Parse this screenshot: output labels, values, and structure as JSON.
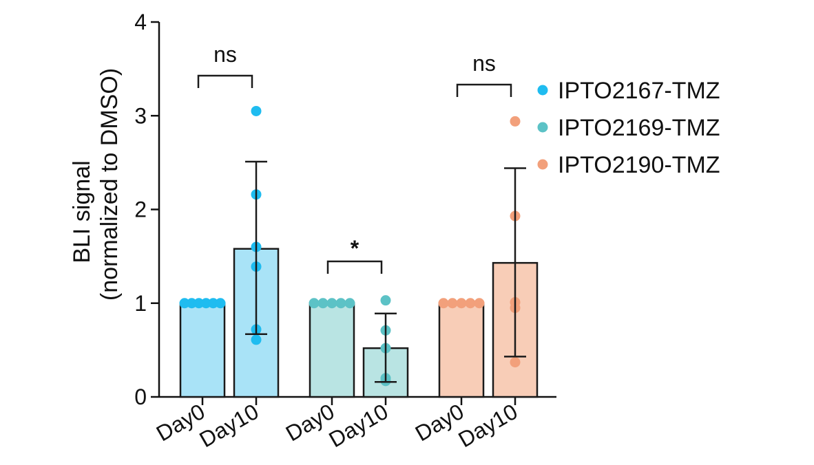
{
  "chart_data": {
    "type": "bar",
    "ylabel_line1": "BLI signal",
    "ylabel_line2": "(normalized to DMSO)",
    "ylim": [
      0,
      4
    ],
    "yticks": [
      "0",
      "1",
      "2",
      "3",
      "4"
    ],
    "groups": [
      {
        "name": "IPTO2167-TMZ",
        "color": "#1fbcf0",
        "fill": "#a9e3f7",
        "bars": [
          {
            "label": "Day0",
            "mean": 1.0,
            "points": [
              1.0,
              1.0,
              1.0,
              1.0,
              1.0,
              1.0
            ],
            "error": null
          },
          {
            "label": "Day10",
            "mean": 1.58,
            "points": [
              3.05,
              2.16,
              1.6,
              1.39,
              0.72,
              0.61
            ],
            "error": [
              0.67,
              2.51
            ]
          }
        ],
        "significance": "ns"
      },
      {
        "name": "IPTO2169-TMZ",
        "color": "#5cc2c6",
        "fill": "#b9e4e3",
        "bars": [
          {
            "label": "Day0",
            "mean": 1.0,
            "points": [
              1.0,
              1.0,
              1.0,
              1.0,
              1.0
            ],
            "error": null
          },
          {
            "label": "Day10",
            "mean": 0.52,
            "points": [
              1.03,
              0.71,
              0.52,
              0.2,
              0.17
            ],
            "error": [
              0.16,
              0.89
            ]
          }
        ],
        "significance": "*"
      },
      {
        "name": "IPTO2190-TMZ",
        "color": "#f2a07b",
        "fill": "#f8cdb7",
        "bars": [
          {
            "label": "Day0",
            "mean": 1.0,
            "points": [
              1.0,
              1.0,
              1.0,
              1.0,
              1.0
            ],
            "error": null
          },
          {
            "label": "Day10",
            "mean": 1.43,
            "points": [
              2.94,
              1.93,
              1.01,
              0.95,
              0.37
            ],
            "error": [
              0.43,
              2.44
            ]
          }
        ],
        "significance": "ns"
      }
    ],
    "legend": [
      "IPTO2167-TMZ",
      "IPTO2169-TMZ",
      "IPTO2190-TMZ"
    ],
    "legend_position": "top-right"
  }
}
